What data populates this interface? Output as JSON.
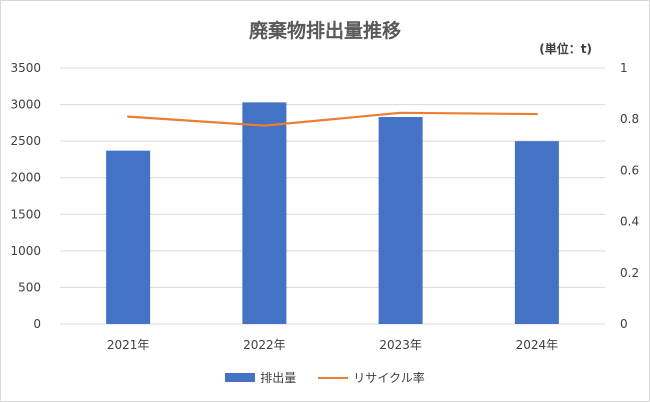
{
  "chart_data": {
    "type": "bar",
    "title": "廃棄物排出量推移",
    "unit_label": "(単位：t)",
    "categories": [
      "2021年",
      "2022年",
      "2023年",
      "2024年"
    ],
    "series": [
      {
        "name": "排出量",
        "type": "bar",
        "axis": "left",
        "values": [
          2370,
          3030,
          2830,
          2500
        ]
      },
      {
        "name": "リサイクル率",
        "type": "line",
        "axis": "right",
        "values": [
          0.81,
          0.775,
          0.825,
          0.82
        ]
      }
    ],
    "ylim_left": [
      0,
      3500
    ],
    "yticks_left": [
      "0",
      "500",
      "1000",
      "1500",
      "2000",
      "2500",
      "3000",
      "3500"
    ],
    "ylim_right": [
      0,
      1
    ],
    "yticks_right": [
      "0",
      "0.2",
      "0.4",
      "0.6",
      "0.8",
      "1"
    ],
    "grid": true,
    "legend_position": "bottom",
    "colors": {
      "bar": "#4472C4",
      "line": "#ED7D31",
      "grid": "#d9d9d9"
    }
  }
}
